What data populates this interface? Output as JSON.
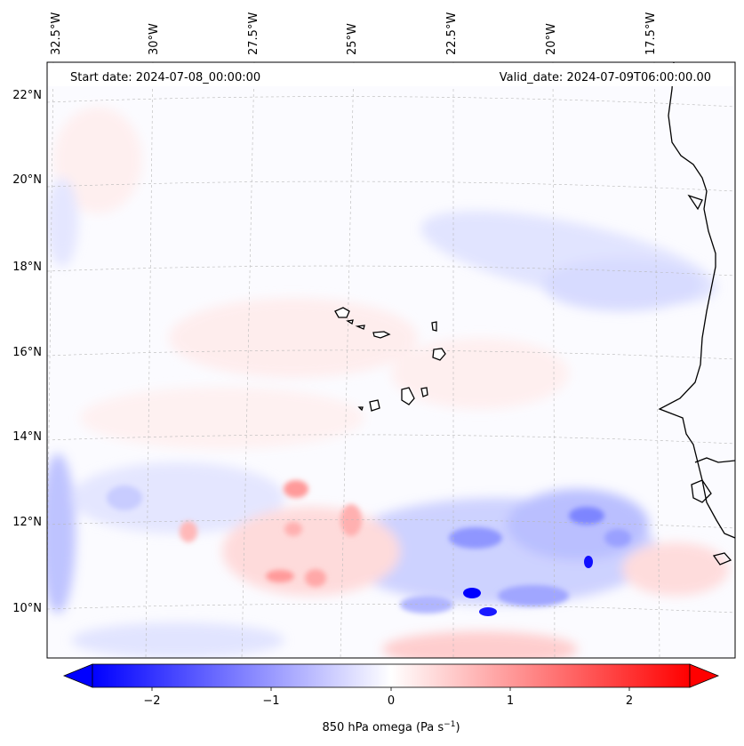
{
  "header": {
    "start_date": "Start date: 2024-07-08_00:00:00",
    "valid_date": "Valid_date: 2024-07-09T06:00:00.00"
  },
  "map": {
    "lon_labels": [
      "32.5°W",
      "30°W",
      "27.5°W",
      "25°W",
      "22.5°W",
      "20°W",
      "17.5°W"
    ],
    "lat_labels": [
      "22°N",
      "20°N",
      "18°N",
      "16°N",
      "14°N",
      "12°N",
      "10°N"
    ],
    "colors": {
      "negative": "#0000ff",
      "neutral": "#ffffff",
      "positive": "#ff0000",
      "coastline": "#000000",
      "gridline": "#b0b0b0"
    }
  },
  "colorbar": {
    "ticks": [
      "−2",
      "−1",
      "0",
      "1",
      "2"
    ],
    "label_main": "850 hPa omega (Pa s",
    "label_exp": "−1",
    "label_close": ")"
  }
}
